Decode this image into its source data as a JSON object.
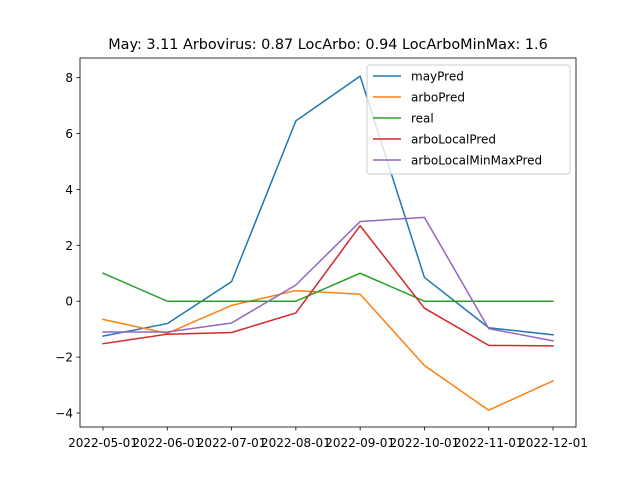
{
  "chart_data": {
    "type": "line",
    "title": "May: 3.11    Arbovirus: 0.87   LocArbo: 0.94   LocArboMinMax: 1.6",
    "xlabel": "",
    "ylabel": "",
    "x": [
      "2022-05-01",
      "2022-06-01",
      "2022-07-01",
      "2022-08-01",
      "2022-09-01",
      "2022-10-01",
      "2022-11-01",
      "2022-12-01"
    ],
    "ylim": [
      -4.5,
      8.7
    ],
    "yticks": [
      -4,
      -2,
      0,
      2,
      4,
      6,
      8
    ],
    "grid": false,
    "legend_position": "upper right",
    "series": [
      {
        "name": "mayPred",
        "color": "#1f77b4",
        "values": [
          -1.25,
          -0.8,
          0.7,
          6.45,
          8.05,
          0.85,
          -0.95,
          -1.2
        ]
      },
      {
        "name": "arboPred",
        "color": "#ff7f0e",
        "values": [
          -0.65,
          -1.15,
          -0.15,
          0.38,
          0.25,
          -2.3,
          -3.9,
          -2.85
        ]
      },
      {
        "name": "real",
        "color": "#2ca02c",
        "values": [
          1.0,
          0.0,
          0.0,
          0.0,
          1.0,
          0.0,
          0.0,
          0.0
        ]
      },
      {
        "name": "arboLocalPred",
        "color": "#d62728",
        "values": [
          -1.52,
          -1.18,
          -1.12,
          -0.42,
          2.7,
          -0.25,
          -1.58,
          -1.6
        ]
      },
      {
        "name": "arboLocalMinMaxPred",
        "color": "#9467bd",
        "values": [
          -1.1,
          -1.1,
          -0.78,
          0.58,
          2.85,
          3.0,
          -0.98,
          -1.42
        ]
      }
    ]
  }
}
